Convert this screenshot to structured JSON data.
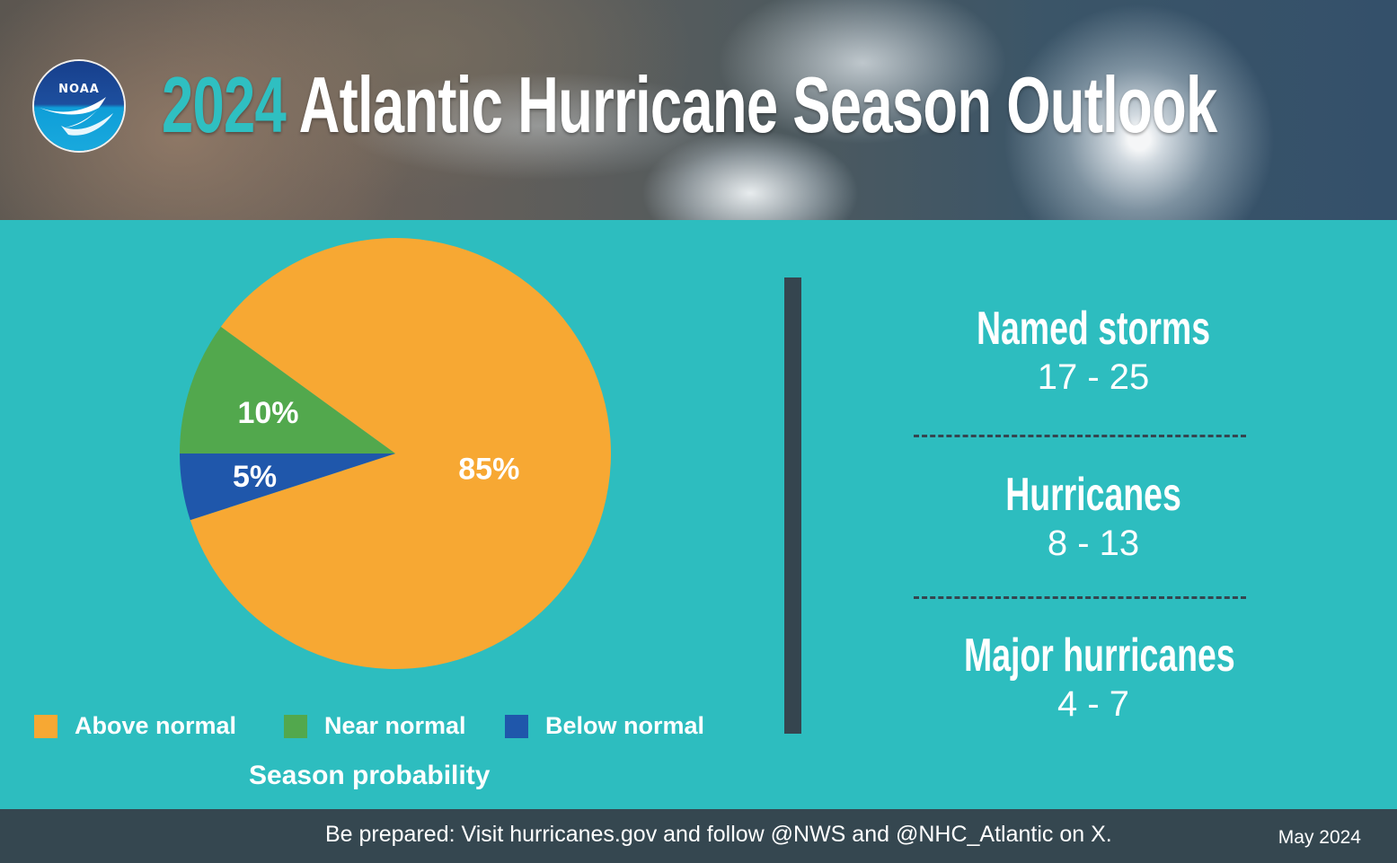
{
  "header": {
    "title_year": "2024",
    "title_rest": "Atlantic Hurricane Season Outlook",
    "logo_text": "NOAA"
  },
  "chart_data": {
    "type": "pie",
    "subtitle": "Season probability",
    "slices": [
      {
        "name": "Above normal",
        "value": 85,
        "label": "85%",
        "color": "#f7a833"
      },
      {
        "name": "Near normal",
        "value": 10,
        "label": "10%",
        "color": "#52a84d"
      },
      {
        "name": "Below normal",
        "value": 5,
        "label": "5%",
        "color": "#1f57ab"
      }
    ],
    "legend": [
      "Above normal",
      "Near normal",
      "Below normal"
    ]
  },
  "stats": [
    {
      "label": "Named storms",
      "value": "17 - 25"
    },
    {
      "label": "Hurricanes",
      "value": "8 - 13"
    },
    {
      "label": "Major hurricanes",
      "value": "4 - 7"
    }
  ],
  "footer": {
    "text": "Be prepared: Visit hurricanes.gov and follow @NWS and @NHC_Atlantic on X.",
    "date": "May  2024"
  }
}
